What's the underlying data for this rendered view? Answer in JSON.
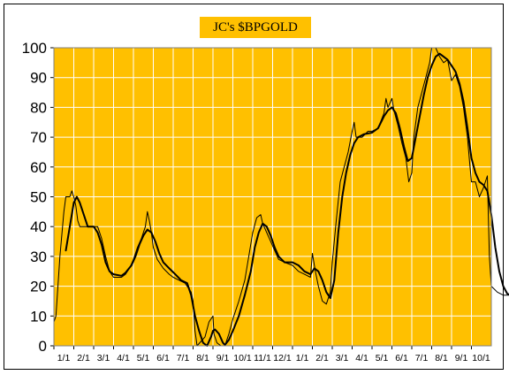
{
  "chart_data": {
    "type": "line",
    "title": "JC's $BPGOLD",
    "xlabel": "",
    "ylabel": "",
    "ylim": [
      0,
      100
    ],
    "yticks": [
      0,
      10,
      20,
      30,
      40,
      50,
      60,
      70,
      80,
      90,
      100
    ],
    "grid": true,
    "background": "#ffc000",
    "categories": [
      "1/1",
      "2/1",
      "3/1",
      "4/1",
      "5/1",
      "6/1",
      "7/1",
      "8/1",
      "9/1",
      "10/1",
      "11/1",
      "12/1",
      "1/1",
      "2/1",
      "3/1",
      "4/1",
      "5/1",
      "6/1",
      "7/1",
      "8/1",
      "9/1",
      "10/1"
    ],
    "x_index_range": [
      0,
      22
    ],
    "series": [
      {
        "style": "thin-step",
        "color": "#000000",
        "points": [
          [
            0,
            8
          ],
          [
            0.1,
            10
          ],
          [
            0.3,
            30
          ],
          [
            0.5,
            45
          ],
          [
            0.6,
            50
          ],
          [
            0.8,
            50
          ],
          [
            0.9,
            52
          ],
          [
            1.0,
            50
          ],
          [
            1.1,
            47
          ],
          [
            1.2,
            42
          ],
          [
            1.3,
            40
          ],
          [
            1.8,
            40
          ],
          [
            2.2,
            40
          ],
          [
            2.4,
            36
          ],
          [
            2.6,
            30
          ],
          [
            2.8,
            25
          ],
          [
            3.0,
            23
          ],
          [
            3.4,
            23
          ],
          [
            3.6,
            24
          ],
          [
            3.8,
            26
          ],
          [
            4.0,
            29
          ],
          [
            4.2,
            33
          ],
          [
            4.4,
            36
          ],
          [
            4.6,
            40
          ],
          [
            4.7,
            45
          ],
          [
            4.8,
            42
          ],
          [
            4.9,
            38
          ],
          [
            5.0,
            33
          ],
          [
            5.2,
            29
          ],
          [
            5.5,
            26
          ],
          [
            5.8,
            24
          ],
          [
            6.0,
            23
          ],
          [
            6.3,
            22
          ],
          [
            6.6,
            21
          ],
          [
            6.9,
            18
          ],
          [
            7.0,
            15
          ],
          [
            7.1,
            5
          ],
          [
            7.2,
            0
          ],
          [
            7.6,
            3
          ],
          [
            7.8,
            8
          ],
          [
            8.0,
            10
          ],
          [
            8.05,
            4
          ],
          [
            8.2,
            1
          ],
          [
            8.4,
            0
          ],
          [
            8.6,
            0
          ],
          [
            8.8,
            4
          ],
          [
            9.0,
            9
          ],
          [
            9.3,
            15
          ],
          [
            9.6,
            22
          ],
          [
            9.8,
            30
          ],
          [
            10.0,
            38
          ],
          [
            10.2,
            43
          ],
          [
            10.4,
            44
          ],
          [
            10.5,
            41
          ],
          [
            10.7,
            38
          ],
          [
            10.9,
            35
          ],
          [
            11.1,
            32
          ],
          [
            11.3,
            29
          ],
          [
            11.6,
            28
          ],
          [
            12.0,
            27
          ],
          [
            12.3,
            25
          ],
          [
            12.6,
            24
          ],
          [
            12.9,
            23
          ],
          [
            13.0,
            31
          ],
          [
            13.15,
            25
          ],
          [
            13.3,
            20
          ],
          [
            13.5,
            15
          ],
          [
            13.7,
            14
          ],
          [
            13.9,
            18
          ],
          [
            14.0,
            28
          ],
          [
            14.2,
            42
          ],
          [
            14.4,
            55
          ],
          [
            14.6,
            60
          ],
          [
            14.8,
            65
          ],
          [
            15.0,
            72
          ],
          [
            15.1,
            75
          ],
          [
            15.2,
            70
          ],
          [
            15.5,
            70
          ],
          [
            15.8,
            72
          ],
          [
            16.0,
            72
          ],
          [
            16.3,
            73
          ],
          [
            16.6,
            78
          ],
          [
            16.7,
            83
          ],
          [
            16.8,
            80
          ],
          [
            17.0,
            83
          ],
          [
            17.1,
            79
          ],
          [
            17.3,
            74
          ],
          [
            17.5,
            68
          ],
          [
            17.7,
            63
          ],
          [
            17.85,
            55
          ],
          [
            18.0,
            58
          ],
          [
            18.1,
            70
          ],
          [
            18.3,
            80
          ],
          [
            18.5,
            85
          ],
          [
            18.7,
            90
          ],
          [
            18.9,
            95
          ],
          [
            19.0,
            100
          ],
          [
            19.2,
            100
          ],
          [
            19.4,
            97
          ],
          [
            19.6,
            95
          ],
          [
            19.8,
            96
          ],
          [
            20.0,
            89
          ],
          [
            20.2,
            91
          ],
          [
            20.4,
            87
          ],
          [
            20.6,
            80
          ],
          [
            20.8,
            70
          ],
          [
            20.9,
            62
          ],
          [
            21.0,
            55
          ],
          [
            21.2,
            55
          ],
          [
            21.4,
            50
          ],
          [
            21.6,
            53
          ],
          [
            21.8,
            57
          ],
          [
            21.9,
            30
          ],
          [
            22.0,
            20
          ],
          [
            22.3,
            18
          ],
          [
            22.6,
            17
          ],
          [
            22.95,
            17
          ]
        ]
      },
      {
        "style": "thick-smooth",
        "color": "#000000",
        "points": [
          [
            0.6,
            32
          ],
          [
            0.8,
            40
          ],
          [
            1.0,
            48
          ],
          [
            1.15,
            50
          ],
          [
            1.3,
            48
          ],
          [
            1.5,
            44
          ],
          [
            1.7,
            40
          ],
          [
            2.0,
            40
          ],
          [
            2.2,
            38
          ],
          [
            2.4,
            34
          ],
          [
            2.6,
            28
          ],
          [
            2.8,
            25
          ],
          [
            3.0,
            24
          ],
          [
            3.4,
            23.5
          ],
          [
            3.6,
            24.5
          ],
          [
            3.9,
            27
          ],
          [
            4.1,
            30
          ],
          [
            4.3,
            34
          ],
          [
            4.5,
            37
          ],
          [
            4.7,
            39
          ],
          [
            4.9,
            38
          ],
          [
            5.1,
            35
          ],
          [
            5.3,
            31
          ],
          [
            5.5,
            28
          ],
          [
            5.8,
            26
          ],
          [
            6.1,
            24
          ],
          [
            6.4,
            22
          ],
          [
            6.7,
            21
          ],
          [
            6.9,
            17
          ],
          [
            7.1,
            10
          ],
          [
            7.3,
            5
          ],
          [
            7.5,
            1
          ],
          [
            7.7,
            0
          ],
          [
            7.9,
            3
          ],
          [
            8.0,
            5
          ],
          [
            8.1,
            5.5
          ],
          [
            8.3,
            4
          ],
          [
            8.5,
            1
          ],
          [
            8.6,
            0.3
          ],
          [
            8.8,
            2
          ],
          [
            9.0,
            5
          ],
          [
            9.3,
            10
          ],
          [
            9.6,
            17
          ],
          [
            9.9,
            25
          ],
          [
            10.1,
            33
          ],
          [
            10.3,
            38
          ],
          [
            10.5,
            41
          ],
          [
            10.7,
            40
          ],
          [
            10.9,
            37
          ],
          [
            11.1,
            33
          ],
          [
            11.3,
            30
          ],
          [
            11.6,
            28
          ],
          [
            12.0,
            28
          ],
          [
            12.3,
            27
          ],
          [
            12.6,
            25
          ],
          [
            12.9,
            24
          ],
          [
            13.1,
            26
          ],
          [
            13.3,
            25
          ],
          [
            13.5,
            22
          ],
          [
            13.7,
            18
          ],
          [
            13.9,
            16
          ],
          [
            14.1,
            22
          ],
          [
            14.3,
            38
          ],
          [
            14.5,
            50
          ],
          [
            14.7,
            58
          ],
          [
            14.9,
            64
          ],
          [
            15.1,
            68
          ],
          [
            15.3,
            70
          ],
          [
            15.6,
            71
          ],
          [
            16.0,
            71.5
          ],
          [
            16.3,
            73
          ],
          [
            16.6,
            77
          ],
          [
            16.8,
            79
          ],
          [
            17.0,
            80
          ],
          [
            17.2,
            78
          ],
          [
            17.4,
            73
          ],
          [
            17.6,
            67
          ],
          [
            17.8,
            62
          ],
          [
            18.0,
            63
          ],
          [
            18.2,
            70
          ],
          [
            18.4,
            77
          ],
          [
            18.6,
            84
          ],
          [
            18.8,
            90
          ],
          [
            19.0,
            94
          ],
          [
            19.2,
            97
          ],
          [
            19.4,
            98
          ],
          [
            19.6,
            97
          ],
          [
            19.8,
            96
          ],
          [
            20.0,
            94
          ],
          [
            20.2,
            92
          ],
          [
            20.4,
            88
          ],
          [
            20.6,
            82
          ],
          [
            20.8,
            73
          ],
          [
            21.0,
            63
          ],
          [
            21.2,
            58
          ],
          [
            21.4,
            55
          ],
          [
            21.6,
            54
          ],
          [
            21.8,
            52
          ],
          [
            22.0,
            44
          ],
          [
            22.2,
            33
          ],
          [
            22.4,
            25
          ],
          [
            22.6,
            20
          ],
          [
            22.8,
            17.5
          ],
          [
            22.95,
            17
          ]
        ]
      }
    ]
  }
}
